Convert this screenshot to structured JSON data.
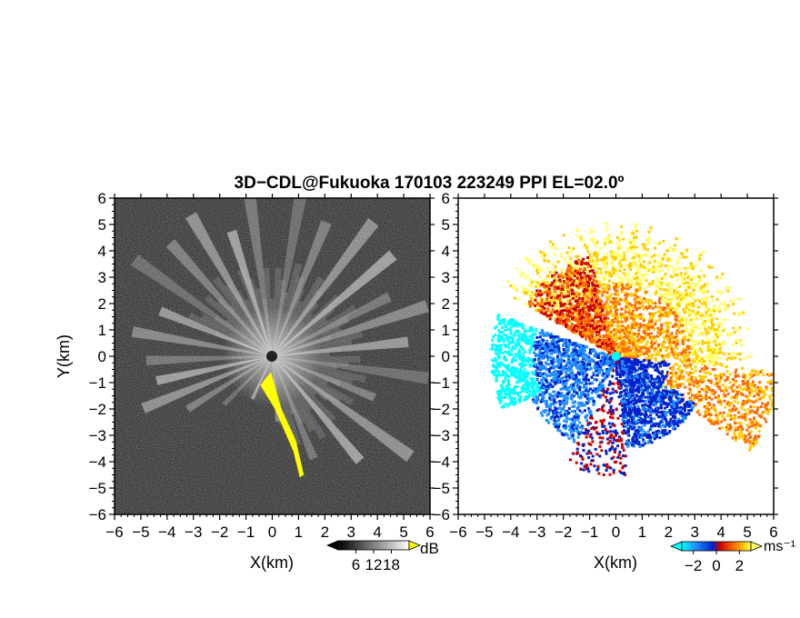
{
  "title": "3D−CDL@Fukuoka 170103 223249 PPI EL=02.0º",
  "chart_data": [
    {
      "type": "heatmap",
      "panel": "reflectivity",
      "xlabel": "X(km)",
      "ylabel": "Y(km)",
      "xlim": [
        -6,
        6
      ],
      "ylim": [
        -6,
        6
      ],
      "xticks": [
        "−6",
        "−5",
        "−4",
        "−3",
        "−2",
        "−1",
        "0",
        "1",
        "2",
        "3",
        "4",
        "5",
        "6"
      ],
      "yticks": [
        "6",
        "5",
        "4",
        "3",
        "2",
        "1",
        "0",
        "−1",
        "−2",
        "−3",
        "−4",
        "−5",
        "−6"
      ],
      "colorbar": {
        "unit": "dB",
        "ticks": [
          "6",
          "12",
          "18"
        ],
        "range": [
          0,
          24
        ],
        "colors": [
          "#000000",
          "#ffffff"
        ],
        "overflow_color": "#ffff00"
      },
      "overflow_region": [
        [
          -0.3,
          -0.9
        ],
        [
          -0.05,
          -0.6
        ],
        [
          0.35,
          -2.0
        ],
        [
          0.9,
          -3.2
        ],
        [
          1.2,
          -4.5
        ],
        [
          1.05,
          -4.6
        ],
        [
          0.8,
          -3.6
        ],
        [
          0.1,
          -2.0
        ],
        [
          -0.45,
          -1.1
        ]
      ],
      "beams_deg": [
        10,
        22,
        37,
        50,
        63,
        72,
        84,
        98,
        112,
        126,
        140,
        158,
        175,
        205,
        225,
        238,
        248,
        258,
        268,
        280,
        292,
        305,
        318,
        330,
        342,
        352
      ],
      "beam_max_km": [
        6.2,
        5.5,
        6.4,
        6.0,
        5.0,
        6.2,
        5.2,
        6.0,
        4.2,
        6.5,
        5.2,
        4.2,
        2.5,
        1.8,
        2.6,
        3.8,
        5.3,
        4.5,
        4.8,
        5.4,
        4.6,
        6.4,
        5.8,
        6.2,
        5.0,
        6.4
      ]
    },
    {
      "type": "scatter",
      "panel": "doppler-velocity",
      "xlabel": "X(km)",
      "ylabel": "",
      "xlim": [
        -6,
        6
      ],
      "ylim": [
        -6,
        6
      ],
      "xticks": [
        "−6",
        "−5",
        "−4",
        "−3",
        "−2",
        "−1",
        "0",
        "1",
        "2",
        "3",
        "4",
        "5",
        "6"
      ],
      "yticks": [
        "6",
        "5",
        "4",
        "3",
        "2",
        "1",
        "0",
        "−1",
        "−2",
        "−3",
        "−4",
        "−5",
        "−6"
      ],
      "colorbar": {
        "unit": "ms⁻¹",
        "ticks": [
          "−2",
          "0",
          "2"
        ],
        "range": [
          -3,
          3
        ],
        "colors": [
          "#00ffff",
          "#1e90ff",
          "#0022cc",
          "#cc0000",
          "#ff6a00",
          "#ffcc00",
          "#ffff66"
        ]
      }
    }
  ]
}
